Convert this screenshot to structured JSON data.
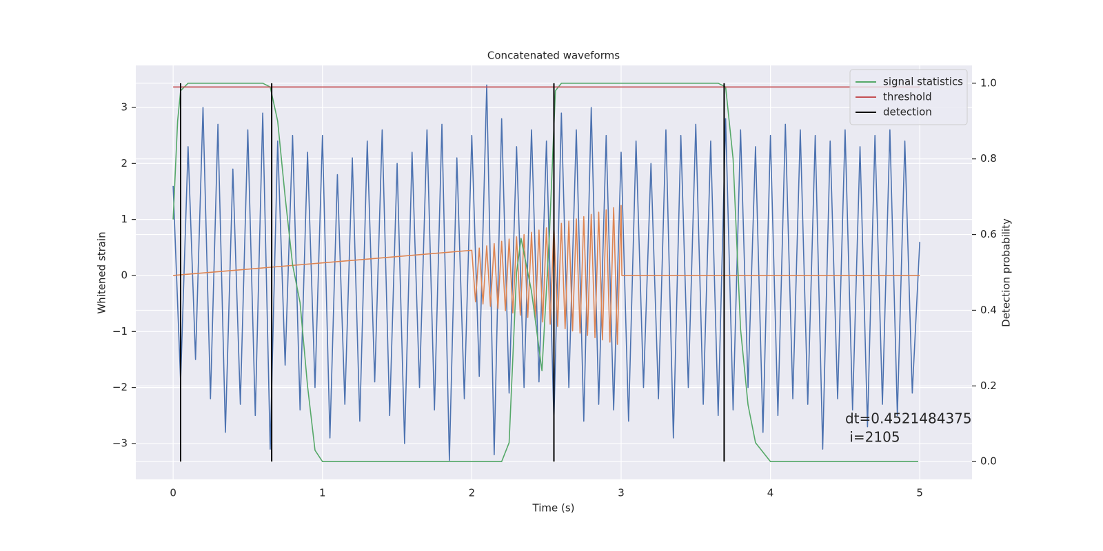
{
  "chart_data": {
    "type": "line",
    "title": "Concatenated waveforms",
    "xlabel": "Time (s)",
    "ylabel": "Whitened strain",
    "y2label": "Detection probability",
    "annotation": [
      "dt=0.4521484375",
      " i=2105"
    ],
    "xlim": [
      -0.25,
      5.35
    ],
    "ylim": [
      -3.64,
      3.75
    ],
    "y2lim": [
      -0.047,
      1.047
    ],
    "xticks": [
      0,
      1,
      2,
      3,
      4,
      5
    ],
    "yticks": [
      {
        "value": -3,
        "label": "−3"
      },
      {
        "value": -2,
        "label": "−2"
      },
      {
        "value": -1,
        "label": "−1"
      },
      0,
      1,
      2,
      3
    ],
    "y2ticks": [
      {
        "value": 0,
        "label": "0.0"
      },
      0.2,
      0.4,
      0.6,
      0.8,
      {
        "value": 1,
        "label": "1.0"
      }
    ],
    "grid": true,
    "legend": "upper right",
    "series": [
      {
        "color": "#4c72b0",
        "x": [
          0,
          0.05,
          0.1,
          0.15,
          0.2,
          0.25,
          0.3,
          0.35,
          0.4,
          0.45,
          0.5,
          0.55,
          0.6,
          0.65,
          0.7,
          0.75,
          0.8,
          0.85,
          0.9,
          0.95,
          1.0,
          1.05,
          1.1,
          1.15,
          1.2,
          1.25,
          1.3,
          1.35,
          1.4,
          1.45,
          1.5,
          1.55,
          1.6,
          1.65,
          1.7,
          1.75,
          1.8,
          1.85,
          1.9,
          1.95,
          2.0,
          2.05,
          2.1,
          2.15,
          2.2,
          2.25,
          2.3,
          2.35,
          2.4,
          2.45,
          2.5,
          2.55,
          2.6,
          2.65,
          2.7,
          2.75,
          2.8,
          2.85,
          2.9,
          2.95,
          3.0,
          3.05,
          3.1,
          3.15,
          3.2,
          3.25,
          3.3,
          3.35,
          3.4,
          3.45,
          3.5,
          3.55,
          3.6,
          3.65,
          3.7,
          3.75,
          3.8,
          3.85,
          3.9,
          3.95,
          4.0,
          4.05,
          4.1,
          4.15,
          4.2,
          4.25,
          4.3,
          4.35,
          4.4,
          4.45,
          4.5,
          4.55,
          4.6,
          4.65,
          4.7,
          4.75,
          4.8,
          4.85,
          4.9,
          4.95,
          5.0
        ],
        "values": [
          1.6,
          -1.9,
          2.3,
          -1.5,
          3.0,
          -2.2,
          2.7,
          -2.8,
          1.9,
          -2.3,
          2.6,
          -2.5,
          2.9,
          -3.1,
          2.4,
          -1.6,
          2.5,
          -2.4,
          2.2,
          -2.0,
          2.5,
          -2.9,
          1.8,
          -2.3,
          2.1,
          -2.6,
          2.4,
          -1.9,
          2.6,
          -2.5,
          2.0,
          -3.0,
          2.2,
          -2.0,
          2.6,
          -2.4,
          2.7,
          -3.3,
          2.1,
          -2.2,
          2.5,
          -1.8,
          3.4,
          -3.2,
          2.8,
          -2.1,
          2.3,
          -2.0,
          2.6,
          -1.9,
          2.4,
          -2.6,
          2.9,
          -2.0,
          2.6,
          -2.6,
          3.0,
          -2.3,
          2.5,
          -2.4,
          2.2,
          -2.6,
          2.4,
          -2.0,
          2.0,
          -2.2,
          2.6,
          -2.9,
          2.5,
          -2.0,
          2.7,
          -2.3,
          2.4,
          -2.5,
          2.8,
          -2.4,
          2.6,
          -2.0,
          2.3,
          -2.8,
          2.5,
          -2.5,
          2.7,
          -2.2,
          2.6,
          -2.3,
          2.5,
          -3.1,
          2.4,
          -2.2,
          2.6,
          -2.4,
          2.3,
          -2.7,
          2.5,
          -2.3,
          2.6,
          -2.5,
          2.4,
          -2.1,
          0.6
        ]
      },
      {
        "color": "#dd8452",
        "x": [
          0,
          2.0,
          2.025,
          2.05,
          2.075,
          2.1,
          2.125,
          2.15,
          2.175,
          2.2,
          2.225,
          2.25,
          2.275,
          2.3,
          2.325,
          2.35,
          2.375,
          2.4,
          2.425,
          2.45,
          2.475,
          2.5,
          2.525,
          2.55,
          2.575,
          2.6,
          2.625,
          2.65,
          2.675,
          2.7,
          2.725,
          2.75,
          2.775,
          2.8,
          2.825,
          2.85,
          2.875,
          2.9,
          2.925,
          2.95,
          2.975,
          3.0,
          3.005,
          5
        ],
        "values": [
          0,
          0.45,
          -0.47,
          0.49,
          -0.51,
          0.53,
          -0.55,
          0.57,
          -0.59,
          0.61,
          -0.63,
          0.65,
          -0.67,
          0.69,
          -0.71,
          0.73,
          -0.75,
          0.77,
          -0.79,
          0.81,
          -0.83,
          0.85,
          -0.87,
          0.89,
          -0.91,
          0.93,
          -0.95,
          0.97,
          -0.99,
          1.01,
          -1.03,
          1.05,
          -1.07,
          1.09,
          -1.11,
          1.13,
          -1.15,
          1.17,
          -1.19,
          1.21,
          -1.23,
          1.25,
          0,
          0
        ]
      },
      {
        "name": "signal statistics",
        "color": "#55a868",
        "axis": "y2",
        "x": [
          0,
          0.03,
          0.05,
          0.1,
          0.6,
          0.65,
          0.7,
          0.75,
          0.8,
          0.85,
          0.9,
          0.95,
          1.0,
          2.2,
          2.25,
          2.3,
          2.33,
          2.4,
          2.47,
          2.52,
          2.56,
          2.6,
          3.65,
          3.7,
          3.75,
          3.8,
          3.85,
          3.9,
          4.0,
          4.99
        ],
        "values": [
          0.64,
          0.9,
          0.98,
          1.0,
          1.0,
          0.99,
          0.9,
          0.7,
          0.52,
          0.42,
          0.2,
          0.03,
          0.0,
          0.0,
          0.05,
          0.5,
          0.59,
          0.45,
          0.24,
          0.6,
          0.98,
          1.0,
          1.0,
          0.99,
          0.8,
          0.35,
          0.15,
          0.05,
          0.0,
          0.0
        ]
      },
      {
        "name": "threshold",
        "color": "#c44e52",
        "axis": "y2",
        "x": [
          0,
          5
        ],
        "values": [
          0.99,
          0.99
        ]
      },
      {
        "name": "detection",
        "color": "#000000",
        "type": "vline",
        "axis": "y2",
        "x": [
          0.05,
          0.66,
          2.55,
          3.69
        ]
      }
    ]
  }
}
